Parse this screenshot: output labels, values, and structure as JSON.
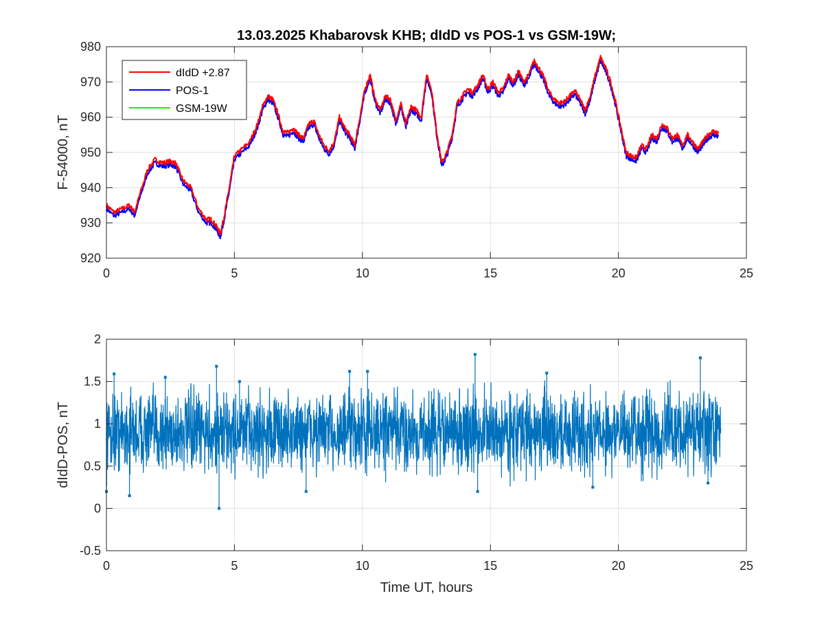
{
  "chart_data": [
    {
      "type": "line",
      "title": "13.03.2025  Khabarovsk KHB; dIdD vs POS-1 vs GSM-19W;",
      "xlabel": "",
      "ylabel": "F-54000, nT",
      "xlim": [
        0,
        25
      ],
      "ylim": [
        920,
        980
      ],
      "xticks": [
        "0",
        "5",
        "10",
        "15",
        "20",
        "25"
      ],
      "yticks": [
        "920",
        "930",
        "940",
        "950",
        "960",
        "970",
        "980"
      ],
      "grid": true,
      "legend_position": "top-left",
      "x_hours": [
        0,
        0.3,
        0.6,
        0.9,
        1.1,
        1.3,
        1.6,
        1.9,
        2.2,
        2.5,
        2.7,
        3.0,
        3.3,
        3.6,
        3.9,
        4.1,
        4.3,
        4.45,
        4.6,
        4.8,
        5.0,
        5.3,
        5.6,
        5.9,
        6.1,
        6.3,
        6.5,
        6.7,
        6.9,
        7.1,
        7.3,
        7.5,
        7.7,
        7.9,
        8.1,
        8.3,
        8.5,
        8.7,
        8.9,
        9.1,
        9.3,
        9.5,
        9.7,
        9.9,
        10.1,
        10.3,
        10.5,
        10.7,
        10.9,
        11.1,
        11.3,
        11.5,
        11.7,
        11.9,
        12.1,
        12.3,
        12.5,
        12.7,
        12.9,
        13.1,
        13.3,
        13.5,
        13.7,
        13.9,
        14.1,
        14.3,
        14.5,
        14.7,
        14.9,
        15.1,
        15.3,
        15.5,
        15.7,
        15.9,
        16.1,
        16.3,
        16.5,
        16.7,
        16.9,
        17.1,
        17.3,
        17.5,
        17.7,
        17.9,
        18.1,
        18.3,
        18.5,
        18.7,
        18.9,
        19.1,
        19.3,
        19.5,
        19.7,
        19.9,
        20.1,
        20.3,
        20.5,
        20.7,
        20.9,
        21.1,
        21.3,
        21.5,
        21.7,
        21.9,
        22.1,
        22.3,
        22.5,
        22.7,
        22.9,
        23.1,
        23.3,
        23.5,
        23.7,
        23.9
      ],
      "series": [
        {
          "name": "dIdD +2.87",
          "color": "#ff0000",
          "values": [
            935,
            933,
            934,
            935,
            933,
            938,
            945,
            948,
            947,
            947.5,
            947,
            942,
            940,
            934,
            931,
            931,
            929,
            927,
            932,
            940,
            949,
            951,
            953,
            958,
            963,
            966,
            965,
            961,
            956,
            955.5,
            957,
            955,
            954,
            958,
            959,
            955,
            952,
            950.5,
            953,
            960,
            957,
            955,
            952,
            960,
            968,
            972,
            965,
            962,
            966,
            965,
            959,
            964,
            958,
            963,
            962,
            960,
            972,
            968,
            956,
            947,
            950,
            955,
            964,
            966,
            968,
            967,
            969,
            972,
            968,
            970,
            967,
            968,
            972,
            970,
            973,
            970,
            972,
            976,
            974,
            971,
            967,
            965,
            964,
            964.5,
            966,
            967.5,
            965,
            962,
            966,
            972,
            977,
            974,
            970,
            964,
            957,
            950,
            949,
            948.5,
            952,
            951,
            955,
            954,
            958,
            957,
            954,
            955,
            952,
            955,
            953,
            951,
            953,
            955,
            956,
            955.5
          ]
        },
        {
          "name": "POS-1",
          "color": "#0000ff",
          "values": [
            934,
            932,
            933,
            934,
            932,
            937,
            944,
            947,
            946,
            946.5,
            946,
            941,
            939,
            933,
            930,
            930,
            928,
            926,
            931,
            939,
            948,
            950,
            952,
            957,
            962,
            965,
            964,
            960,
            955,
            954.5,
            956,
            954,
            953,
            957,
            958,
            954,
            951,
            949.5,
            952,
            959,
            956,
            954,
            951,
            959,
            967,
            971,
            964,
            961,
            965,
            964,
            958,
            963,
            957,
            962,
            961,
            959,
            971,
            967,
            955,
            946,
            949,
            954,
            963,
            965,
            967,
            966,
            968,
            971,
            967,
            969,
            966,
            967,
            971,
            969,
            972,
            969,
            971,
            975,
            973,
            970,
            966,
            964,
            963,
            963.5,
            965,
            966.5,
            964,
            961,
            965,
            971,
            976,
            973,
            969,
            963,
            956,
            949,
            948,
            947.5,
            951,
            950,
            954,
            953,
            957,
            956,
            953,
            954,
            951,
            954,
            952,
            950,
            952,
            954,
            955,
            954.5
          ]
        },
        {
          "name": "GSM-19W",
          "color": "#00ff00",
          "values": []
        }
      ]
    },
    {
      "type": "line",
      "title": "",
      "xlabel": "Time UT, hours",
      "ylabel": "dIdD-POS, nT",
      "xlim": [
        0,
        25
      ],
      "ylim": [
        -0.5,
        2
      ],
      "xticks": [
        "0",
        "5",
        "10",
        "15",
        "20",
        "25"
      ],
      "yticks": [
        "-0.5",
        "0",
        "0.5",
        "1",
        "1.5",
        "2"
      ],
      "grid": true,
      "series": [
        {
          "name": "",
          "color": "#0072bd",
          "marker": "point",
          "mean": 0.9,
          "band": [
            0.5,
            1.3
          ],
          "x_range": [
            0,
            24
          ],
          "outliers": [
            {
              "x": 0.0,
              "y": 0.2
            },
            {
              "x": 0.3,
              "y": 1.59
            },
            {
              "x": 0.9,
              "y": 0.15
            },
            {
              "x": 2.3,
              "y": 1.55
            },
            {
              "x": 4.3,
              "y": 1.68
            },
            {
              "x": 4.4,
              "y": 0.0
            },
            {
              "x": 5.2,
              "y": 1.5
            },
            {
              "x": 7.8,
              "y": 0.2
            },
            {
              "x": 9.5,
              "y": 1.62
            },
            {
              "x": 10.2,
              "y": 1.62
            },
            {
              "x": 14.4,
              "y": 1.82
            },
            {
              "x": 14.5,
              "y": 0.2
            },
            {
              "x": 17.2,
              "y": 1.6
            },
            {
              "x": 19.0,
              "y": 0.25
            },
            {
              "x": 23.2,
              "y": 1.78
            },
            {
              "x": 23.5,
              "y": 0.3
            }
          ]
        }
      ]
    }
  ]
}
